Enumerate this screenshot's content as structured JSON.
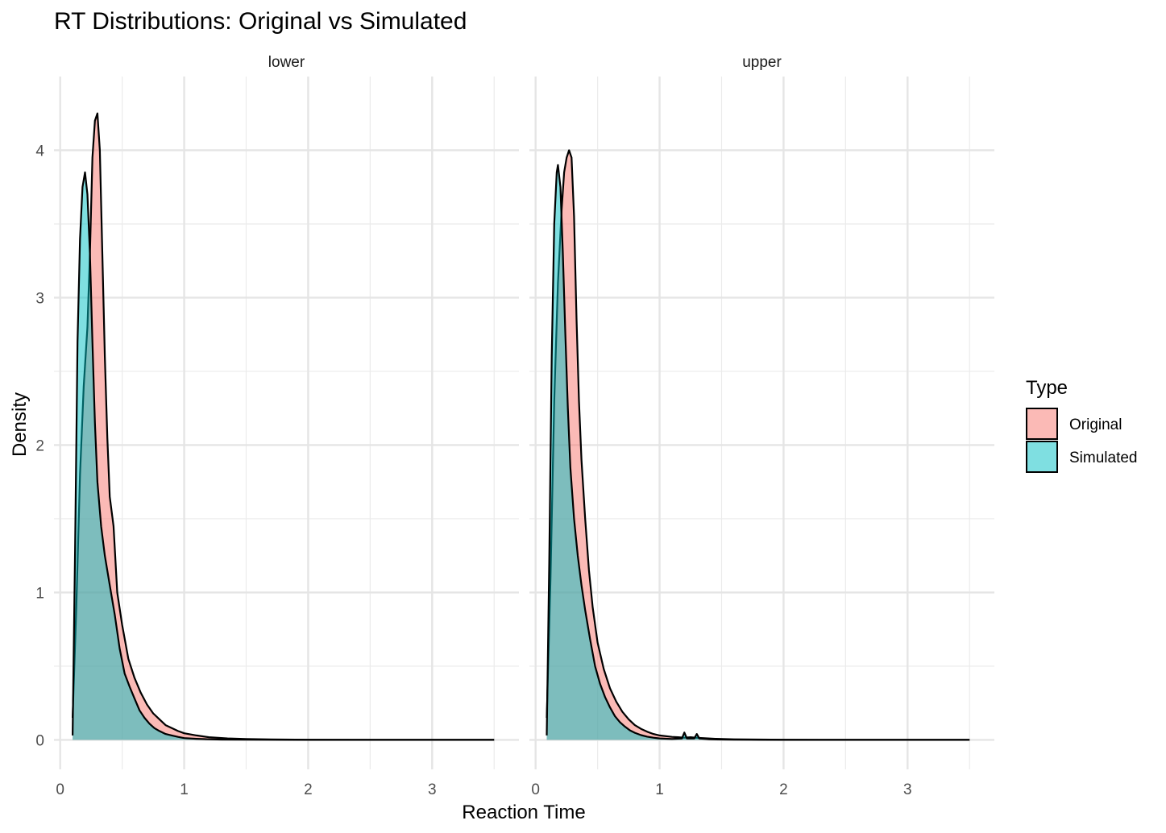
{
  "chart_data": {
    "type": "area",
    "title": "RT Distributions: Original vs Simulated",
    "xlabel": "Reaction Time",
    "ylabel": "Density",
    "xlim": [
      -0.05,
      3.7
    ],
    "ylim": [
      -0.2,
      4.5
    ],
    "x_ticks": [
      0,
      1,
      2,
      3
    ],
    "y_ticks": [
      0,
      1,
      2,
      3,
      4
    ],
    "grid": true,
    "legend": {
      "title": "Type",
      "position": "right",
      "entries": [
        {
          "label": "Original",
          "color": "#F8766D"
        },
        {
          "label": "Simulated",
          "color": "#00BFC4"
        }
      ]
    },
    "panels": [
      {
        "name": "lower",
        "series": [
          {
            "name": "Original",
            "points": [
              [
                0.1,
                0.15
              ],
              [
                0.13,
                0.9
              ],
              [
                0.16,
                1.8
              ],
              [
                0.19,
                2.4
              ],
              [
                0.22,
                2.8
              ],
              [
                0.24,
                3.3
              ],
              [
                0.26,
                3.95
              ],
              [
                0.28,
                4.2
              ],
              [
                0.3,
                4.25
              ],
              [
                0.32,
                4.0
              ],
              [
                0.34,
                3.3
              ],
              [
                0.36,
                2.6
              ],
              [
                0.38,
                2.05
              ],
              [
                0.4,
                1.65
              ],
              [
                0.43,
                1.45
              ],
              [
                0.46,
                1.0
              ],
              [
                0.5,
                0.78
              ],
              [
                0.55,
                0.55
              ],
              [
                0.6,
                0.42
              ],
              [
                0.65,
                0.32
              ],
              [
                0.7,
                0.24
              ],
              [
                0.75,
                0.18
              ],
              [
                0.8,
                0.14
              ],
              [
                0.85,
                0.1
              ],
              [
                0.9,
                0.08
              ],
              [
                0.95,
                0.06
              ],
              [
                1.0,
                0.045
              ],
              [
                1.1,
                0.03
              ],
              [
                1.2,
                0.018
              ],
              [
                1.35,
                0.01
              ],
              [
                1.5,
                0.006
              ],
              [
                1.7,
                0.003
              ],
              [
                2.0,
                0.001
              ],
              [
                2.5,
                0.0
              ],
              [
                3.0,
                0.0
              ],
              [
                3.5,
                0.0
              ]
            ]
          },
          {
            "name": "Simulated",
            "points": [
              [
                0.1,
                0.03
              ],
              [
                0.12,
                1.3
              ],
              [
                0.14,
                2.7
              ],
              [
                0.16,
                3.4
              ],
              [
                0.18,
                3.75
              ],
              [
                0.2,
                3.85
              ],
              [
                0.22,
                3.7
              ],
              [
                0.24,
                3.3
              ],
              [
                0.26,
                2.7
              ],
              [
                0.28,
                2.15
              ],
              [
                0.3,
                1.75
              ],
              [
                0.33,
                1.45
              ],
              [
                0.36,
                1.25
              ],
              [
                0.4,
                1.05
              ],
              [
                0.44,
                0.85
              ],
              [
                0.48,
                0.62
              ],
              [
                0.52,
                0.45
              ],
              [
                0.56,
                0.36
              ],
              [
                0.6,
                0.28
              ],
              [
                0.64,
                0.2
              ],
              [
                0.68,
                0.15
              ],
              [
                0.72,
                0.11
              ],
              [
                0.76,
                0.08
              ],
              [
                0.8,
                0.06
              ],
              [
                0.85,
                0.04
              ],
              [
                0.9,
                0.03
              ],
              [
                0.95,
                0.02
              ],
              [
                1.0,
                0.012
              ],
              [
                1.1,
                0.007
              ],
              [
                1.2,
                0.004
              ],
              [
                1.3,
                0.002
              ],
              [
                1.5,
                0.001
              ],
              [
                2.0,
                0.0
              ],
              [
                2.5,
                0.0
              ],
              [
                3.0,
                0.0
              ],
              [
                3.5,
                0.0
              ]
            ]
          }
        ]
      },
      {
        "name": "upper",
        "series": [
          {
            "name": "Original",
            "points": [
              [
                0.09,
                0.15
              ],
              [
                0.12,
                1.1
              ],
              [
                0.15,
                2.3
              ],
              [
                0.18,
                3.1
              ],
              [
                0.21,
                3.6
              ],
              [
                0.23,
                3.85
              ],
              [
                0.25,
                3.95
              ],
              [
                0.27,
                4.0
              ],
              [
                0.29,
                3.95
              ],
              [
                0.31,
                3.55
              ],
              [
                0.33,
                2.85
              ],
              [
                0.35,
                2.3
              ],
              [
                0.37,
                1.9
              ],
              [
                0.4,
                1.5
              ],
              [
                0.43,
                1.15
              ],
              [
                0.46,
                0.9
              ],
              [
                0.5,
                0.66
              ],
              [
                0.55,
                0.48
              ],
              [
                0.6,
                0.35
              ],
              [
                0.65,
                0.26
              ],
              [
                0.7,
                0.19
              ],
              [
                0.75,
                0.14
              ],
              [
                0.8,
                0.1
              ],
              [
                0.85,
                0.075
              ],
              [
                0.9,
                0.055
              ],
              [
                0.95,
                0.04
              ],
              [
                1.0,
                0.03
              ],
              [
                1.1,
                0.02
              ],
              [
                1.15,
                0.018
              ],
              [
                1.2,
                0.015
              ],
              [
                1.25,
                0.018
              ],
              [
                1.3,
                0.014
              ],
              [
                1.35,
                0.012
              ],
              [
                1.45,
                0.007
              ],
              [
                1.6,
                0.004
              ],
              [
                1.8,
                0.002
              ],
              [
                2.0,
                0.001
              ],
              [
                2.5,
                0.0
              ],
              [
                3.0,
                0.0
              ],
              [
                3.5,
                0.0
              ]
            ]
          },
          {
            "name": "Simulated",
            "points": [
              [
                0.09,
                0.03
              ],
              [
                0.11,
                1.2
              ],
              [
                0.13,
                2.6
              ],
              [
                0.15,
                3.5
              ],
              [
                0.17,
                3.85
              ],
              [
                0.18,
                3.9
              ],
              [
                0.2,
                3.75
              ],
              [
                0.22,
                3.3
              ],
              [
                0.24,
                2.75
              ],
              [
                0.26,
                2.25
              ],
              [
                0.28,
                1.85
              ],
              [
                0.31,
                1.5
              ],
              [
                0.34,
                1.25
              ],
              [
                0.37,
                1.05
              ],
              [
                0.4,
                0.88
              ],
              [
                0.44,
                0.68
              ],
              [
                0.48,
                0.5
              ],
              [
                0.52,
                0.38
              ],
              [
                0.56,
                0.29
              ],
              [
                0.6,
                0.22
              ],
              [
                0.64,
                0.16
              ],
              [
                0.68,
                0.12
              ],
              [
                0.72,
                0.09
              ],
              [
                0.76,
                0.065
              ],
              [
                0.8,
                0.048
              ],
              [
                0.85,
                0.032
              ],
              [
                0.9,
                0.022
              ],
              [
                0.95,
                0.015
              ],
              [
                1.0,
                0.01
              ],
              [
                1.1,
                0.006
              ],
              [
                1.18,
                0.01
              ],
              [
                1.2,
                0.05
              ],
              [
                1.22,
                0.01
              ],
              [
                1.28,
                0.01
              ],
              [
                1.3,
                0.04
              ],
              [
                1.32,
                0.01
              ],
              [
                1.4,
                0.004
              ],
              [
                1.6,
                0.001
              ],
              [
                2.0,
                0.0
              ],
              [
                2.5,
                0.0
              ],
              [
                3.0,
                0.0
              ],
              [
                3.5,
                0.0
              ]
            ]
          }
        ]
      }
    ]
  }
}
